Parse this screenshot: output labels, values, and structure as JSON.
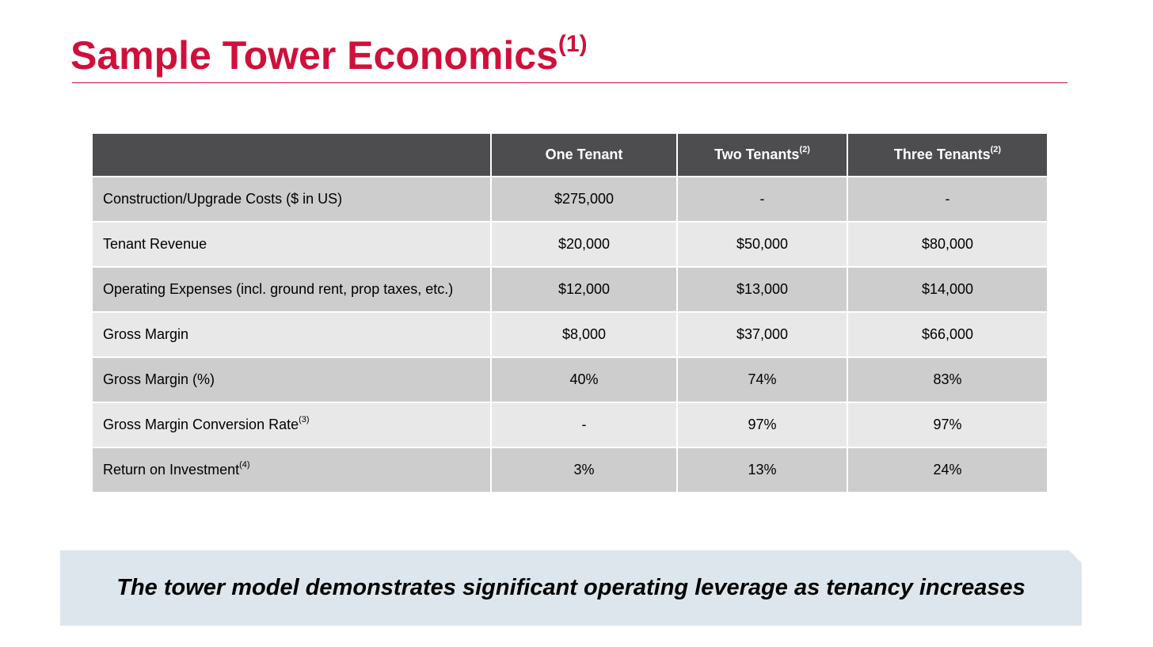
{
  "title": {
    "text": "Sample Tower Economics",
    "footnote": "(1)",
    "color": "#d0103a"
  },
  "table": {
    "columns": [
      {
        "label": "",
        "footnote": ""
      },
      {
        "label": "One Tenant",
        "footnote": ""
      },
      {
        "label": "Two Tenants",
        "footnote": "(2)"
      },
      {
        "label": "Three Tenants",
        "footnote": "(2)"
      }
    ],
    "rows": [
      {
        "label": "Construction/Upgrade Costs ($ in US)",
        "footnote": "",
        "values": [
          "$275,000",
          "-",
          "-"
        ]
      },
      {
        "label": "Tenant Revenue",
        "footnote": "",
        "values": [
          "$20,000",
          "$50,000",
          "$80,000"
        ]
      },
      {
        "label": "Operating Expenses (incl. ground rent, prop taxes, etc.)",
        "footnote": "",
        "values": [
          "$12,000",
          "$13,000",
          "$14,000"
        ]
      },
      {
        "label": "Gross Margin",
        "footnote": "",
        "values": [
          "$8,000",
          "$37,000",
          "$66,000"
        ]
      },
      {
        "label": "Gross Margin (%)",
        "footnote": "",
        "values": [
          "40%",
          "74%",
          "83%"
        ]
      },
      {
        "label": "Gross Margin Conversion Rate",
        "footnote": "(3)",
        "values": [
          "-",
          "97%",
          "97%"
        ]
      },
      {
        "label": "Return on Investment",
        "footnote": "(4)",
        "values": [
          "3%",
          "13%",
          "24%"
        ]
      }
    ],
    "header_color": "#4d4d4f"
  },
  "banner": {
    "text": "The tower model demonstrates significant operating leverage as tenancy increases",
    "color": "#dde6ec"
  }
}
